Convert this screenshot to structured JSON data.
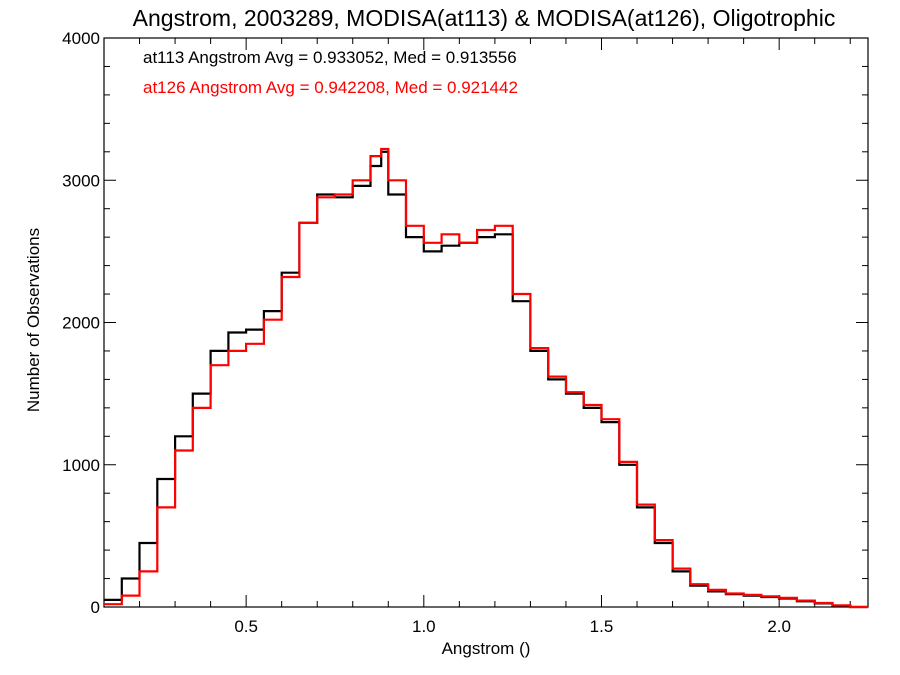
{
  "chart_data": {
    "type": "line",
    "step": true,
    "title": "Angstrom, 2003289, MODISA(at113) & MODISA(at126), Oligotrophic",
    "xlabel": "Angstrom ()",
    "ylabel": "Number of Observations",
    "xlim": [
      0.1,
      2.25
    ],
    "ylim": [
      0,
      4000
    ],
    "xticks": [
      0.5,
      1.0,
      1.5,
      2.0
    ],
    "xtick_labels": [
      "0.5",
      "1.0",
      "1.5",
      "2.0"
    ],
    "yticks": [
      0,
      1000,
      2000,
      3000,
      4000
    ],
    "ytick_labels": [
      "0",
      "1000",
      "2000",
      "3000",
      "4000"
    ],
    "grid": false,
    "legend_placement": "top-left",
    "annotations": [
      {
        "text": "at113 Angstrom Avg = 0.933052, Med = 0.913556",
        "color": "#000000"
      },
      {
        "text": "at126 Angstrom Avg = 0.942208, Med = 0.921442",
        "color": "#ff0000"
      }
    ],
    "series": [
      {
        "color": "#000000",
        "x": [
          0.1,
          0.15,
          0.2,
          0.25,
          0.3,
          0.35,
          0.4,
          0.45,
          0.5,
          0.55,
          0.6,
          0.65,
          0.7,
          0.75,
          0.8,
          0.85,
          0.88,
          0.9,
          0.95,
          1.0,
          1.05,
          1.1,
          1.15,
          1.2,
          1.25,
          1.3,
          1.35,
          1.4,
          1.45,
          1.5,
          1.55,
          1.6,
          1.65,
          1.7,
          1.75,
          1.8,
          1.85,
          1.9,
          1.95,
          2.0,
          2.05,
          2.1,
          2.15,
          2.2,
          2.25
        ],
        "y": [
          50,
          200,
          450,
          900,
          1200,
          1500,
          1800,
          1930,
          1950,
          2080,
          2350,
          2700,
          2900,
          2880,
          2960,
          3100,
          3200,
          2900,
          2600,
          2500,
          2540,
          2560,
          2600,
          2620,
          2150,
          1800,
          1600,
          1500,
          1400,
          1300,
          1000,
          700,
          450,
          250,
          150,
          110,
          90,
          80,
          70,
          60,
          40,
          25,
          10,
          0,
          0
        ]
      },
      {
        "color": "#ff0000",
        "x": [
          0.1,
          0.15,
          0.2,
          0.25,
          0.3,
          0.35,
          0.4,
          0.45,
          0.5,
          0.55,
          0.6,
          0.65,
          0.7,
          0.75,
          0.8,
          0.85,
          0.88,
          0.9,
          0.95,
          1.0,
          1.05,
          1.1,
          1.15,
          1.2,
          1.25,
          1.3,
          1.35,
          1.4,
          1.45,
          1.5,
          1.55,
          1.6,
          1.65,
          1.7,
          1.75,
          1.8,
          1.85,
          1.9,
          1.95,
          2.0,
          2.05,
          2.1,
          2.15,
          2.2,
          2.25
        ],
        "y": [
          20,
          80,
          250,
          700,
          1100,
          1400,
          1700,
          1800,
          1850,
          2020,
          2320,
          2700,
          2880,
          2900,
          3000,
          3170,
          3220,
          3000,
          2680,
          2560,
          2620,
          2560,
          2650,
          2680,
          2200,
          1820,
          1620,
          1510,
          1420,
          1320,
          1020,
          720,
          470,
          270,
          160,
          120,
          95,
          85,
          75,
          65,
          45,
          28,
          12,
          0,
          0
        ]
      }
    ]
  }
}
